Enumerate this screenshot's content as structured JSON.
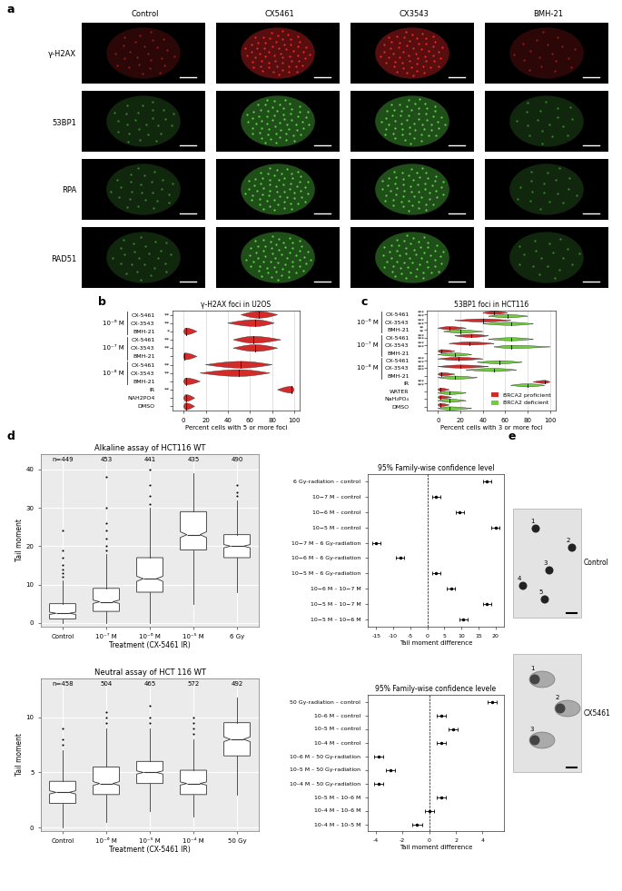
{
  "panel_labels": [
    "a",
    "b",
    "c",
    "d",
    "e"
  ],
  "panel_a": {
    "type": "image_grid",
    "columns": [
      "Control",
      "CX5461",
      "CX3543",
      "BMH-21"
    ],
    "rows": [
      "γ-H2AX",
      "53BP1",
      "RPA",
      "RAD51"
    ]
  },
  "chart_data": [
    {
      "type": "violin",
      "title": "γ-H2AX foci in U2OS",
      "orientation": "horizontal",
      "categories": [
        "CX-5461",
        "CX-3543",
        "BMH-21",
        "CX-5461",
        "CX-3543",
        "BMH-21",
        "CX-5461",
        "CX-3543",
        "BMH-21",
        "IR",
        "NAH2PO4",
        "DMSO"
      ],
      "group": [
        "10⁻⁶ M",
        "10⁻⁶ M",
        "10⁻⁶ M",
        "10⁻⁷ M",
        "10⁻⁷ M",
        "10⁻⁷ M",
        "10⁻⁸ M",
        "10⁻⁸ M",
        "10⁻⁸ M",
        null,
        null,
        null
      ],
      "significance": [
        "**",
        "**",
        "*",
        "**",
        "**",
        null,
        "**",
        "**",
        null,
        "**",
        null,
        null
      ],
      "values": [
        68,
        65,
        2,
        63,
        65,
        1,
        52,
        50,
        2,
        98,
        2,
        2
      ],
      "min": [
        52,
        40,
        0,
        45,
        45,
        0,
        20,
        15,
        0,
        85,
        0,
        0
      ],
      "max": [
        85,
        82,
        12,
        88,
        85,
        12,
        80,
        78,
        15,
        100,
        10,
        10
      ],
      "color": "#d42a2a",
      "xlabel": "Percent cells with 5 or more foci",
      "xlim": [
        -10,
        105
      ],
      "xticks": [
        0,
        20,
        40,
        60,
        80,
        100
      ],
      "grid": true
    },
    {
      "type": "violin",
      "title": "53BP1 foci in HCT116",
      "orientation": "horizontal",
      "categories": [
        "CX-5461",
        "CX-3543",
        "BMH-21",
        "CX-5461",
        "CX-3543",
        "BMH-21",
        "CX-5461",
        "CX-3543",
        "BMH-21",
        "IR",
        "WATER",
        "NaH₂PO₄",
        "DMSO"
      ],
      "group": [
        "10⁻⁶ M",
        "10⁻⁶ M",
        "10⁻⁶ M",
        "10⁻⁷ M",
        "10⁻⁷ M",
        "10⁻⁷ M",
        "10⁻⁸ M",
        "10⁻⁸ M",
        "10⁻⁸ M",
        null,
        null,
        null,
        null
      ],
      "series": [
        {
          "name": "BRCA2 proficient",
          "color": "#d42a2a",
          "values": [
            50,
            40,
            10,
            30,
            28,
            3,
            18,
            20,
            3,
            95,
            2,
            2,
            2
          ],
          "min": [
            40,
            15,
            0,
            15,
            10,
            0,
            0,
            0,
            0,
            85,
            0,
            0,
            0
          ],
          "max": [
            62,
            65,
            25,
            45,
            50,
            15,
            40,
            45,
            15,
            100,
            10,
            12,
            10
          ],
          "significance": [
            "***",
            "***",
            "**",
            "***",
            "***",
            null,
            "***",
            "***",
            null,
            "***",
            null,
            null,
            null
          ]
        },
        {
          "name": "BRCA2 deficient",
          "color": "#6fcf3a",
          "values": [
            62,
            65,
            20,
            65,
            65,
            15,
            55,
            50,
            15,
            80,
            10,
            10,
            10
          ],
          "min": [
            45,
            40,
            5,
            45,
            50,
            0,
            35,
            25,
            0,
            65,
            0,
            0,
            0
          ],
          "max": [
            80,
            85,
            40,
            85,
            100,
            30,
            75,
            70,
            35,
            95,
            25,
            25,
            30
          ],
          "significance": [
            "***",
            "***",
            "**",
            "***",
            "***",
            null,
            "***",
            "***",
            null,
            "***",
            null,
            null,
            null
          ]
        }
      ],
      "xlabel": "Percent cells with 3 or more foci",
      "xlim": [
        -10,
        105
      ],
      "xticks": [
        0,
        20,
        40,
        60,
        80,
        100
      ],
      "grid": true,
      "legend": "lower right"
    },
    {
      "type": "box",
      "title": "Alkaline assay of HCT116 WT",
      "categories": [
        "Control",
        "10⁻⁷ M",
        "10⁻⁶ M",
        "10⁻⁵ M",
        "6 Gy"
      ],
      "q1": [
        1,
        3,
        8,
        19,
        17
      ],
      "median": [
        2.5,
        5.5,
        11.5,
        23,
        20
      ],
      "q3": [
        5,
        9,
        17,
        29,
        23
      ],
      "whislo": [
        0,
        0,
        0,
        5,
        8
      ],
      "whishi": [
        11,
        18,
        30,
        39,
        32
      ],
      "fliers": [
        [
          12,
          13,
          14,
          15,
          17,
          19,
          24
        ],
        [
          19,
          20,
          22,
          24,
          26,
          30,
          38
        ],
        [
          31,
          33,
          36,
          40
        ],
        [],
        [
          33,
          34,
          36
        ]
      ],
      "n": [
        449,
        453,
        441,
        435,
        490
      ],
      "n_labels": [
        "n=449",
        "453",
        "441",
        "435",
        "490"
      ],
      "xlabel": "Treatment (CX-5461 IR)",
      "ylabel": "Tail moment",
      "ylim": [
        -1,
        44
      ],
      "yticks": [
        0,
        10,
        20,
        30,
        40
      ],
      "grid": true
    },
    {
      "type": "errorbar",
      "title": "95% Family-wise confidence level",
      "orientation": "horizontal",
      "categories": [
        "6 Gy-radiation – control",
        "10−7 M – control",
        "10−6 M – control",
        "10−5 M – control",
        "10−7 M – 6 Gy-radiation",
        "10−6 M – 6 Gy-radiation",
        "10−5 M – 6 Gy-radiation",
        "10−6 M – 10−7 M",
        "10−5 M – 10−7 M",
        "10−5 M – 10−6 M"
      ],
      "values": [
        17.5,
        2.5,
        9.5,
        20,
        -15,
        -8,
        2.5,
        7,
        17.5,
        10.5
      ],
      "lower": [
        16.3,
        1.3,
        8.3,
        18.8,
        -16.2,
        -9.2,
        1.3,
        5.8,
        16.3,
        9.3
      ],
      "upper": [
        18.7,
        3.7,
        10.7,
        21.2,
        -13.8,
        -6.8,
        3.7,
        8.2,
        18.7,
        11.7
      ],
      "reference": 0,
      "xlabel": "Tail moment difference",
      "xlim": [
        -17.5,
        22.5
      ],
      "xticks": [
        -15,
        -10,
        -5,
        0,
        5,
        10,
        15,
        20
      ],
      "grid": false
    },
    {
      "type": "box",
      "title": "Neutral assay of HCT 116 WT",
      "categories": [
        "Control",
        "10⁻⁶ M",
        "10⁻⁵ M",
        "10⁻⁴ M",
        "50 Gy"
      ],
      "q1": [
        2.2,
        3,
        4,
        3,
        6.5
      ],
      "median": [
        3.2,
        4,
        5,
        4,
        8
      ],
      "q3": [
        4.2,
        5.5,
        6,
        5.2,
        9.5
      ],
      "whislo": [
        0,
        0.5,
        1.5,
        1,
        3
      ],
      "whishi": [
        7,
        9,
        9,
        8,
        11.8
      ],
      "fliers": [
        [
          7.5,
          8,
          9
        ],
        [
          9.5,
          10,
          10.5
        ],
        [
          9.5,
          10,
          11
        ],
        [
          8.5,
          9,
          9.5,
          10
        ],
        []
      ],
      "n": [
        458,
        504,
        465,
        572,
        492
      ],
      "n_labels": [
        "n=458",
        "504",
        "465",
        "572",
        "492"
      ],
      "xlabel": "Treatment (CX-5461 IR)",
      "ylabel": "Tail moment",
      "ylim": [
        -0.3,
        13.5
      ],
      "yticks": [
        0,
        5,
        10
      ],
      "grid": true
    },
    {
      "type": "errorbar",
      "title": "95% Family-wise confidence levele",
      "orientation": "horizontal",
      "categories": [
        "50 Gy-radiation – control",
        "10–6 M – control",
        "10–5 M – control",
        "10–4 M – control",
        "10–6 M – 50 Gy-radiation",
        "10–5 M – 50 Gy-radiation",
        "10–4 M – 50 Gy-radiation",
        "10–5 M – 10–6 M",
        "10–4 M – 10–6 M",
        "10–4 M – 10–5 M"
      ],
      "values": [
        4.7,
        0.9,
        1.8,
        0.9,
        -3.8,
        -2.9,
        -3.8,
        0.9,
        0.0,
        -0.9
      ],
      "lower": [
        4.35,
        0.55,
        1.45,
        0.55,
        -4.15,
        -3.25,
        -4.15,
        0.55,
        -0.35,
        -1.25
      ],
      "upper": [
        5.05,
        1.25,
        2.15,
        1.25,
        -3.45,
        -2.55,
        -3.45,
        1.25,
        0.35,
        -0.55
      ],
      "reference": 0,
      "xlabel": "Tail moment difference",
      "xlim": [
        -4.6,
        5.6
      ],
      "xticks": [
        -4,
        -2,
        0,
        2,
        4
      ],
      "grid": false
    }
  ],
  "panel_e": {
    "type": "image",
    "images": [
      {
        "label": "Control",
        "cells": [
          "1",
          "2",
          "3",
          "4",
          "5"
        ]
      },
      {
        "label": "CX5461",
        "cells": [
          "1",
          "2",
          "3"
        ]
      }
    ]
  }
}
